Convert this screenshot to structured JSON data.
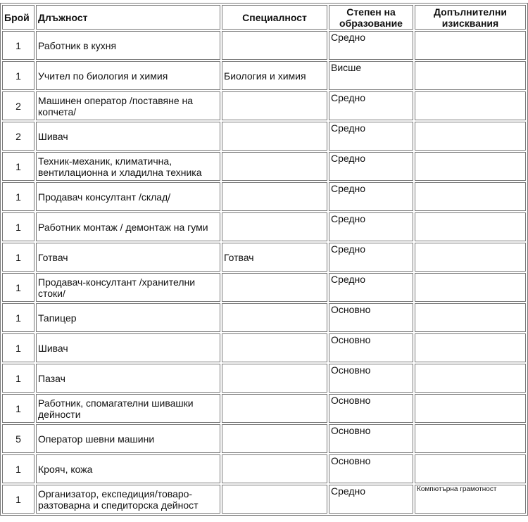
{
  "headers": {
    "count": "Брой",
    "position": "Длъжност",
    "specialty": "Специалност",
    "education": "Степен на образование",
    "requirements": "Допълнителни изисквания"
  },
  "rows": [
    {
      "count": "1",
      "position": "Работник в кухня",
      "specialty": "",
      "education": "Средно",
      "requirements": ""
    },
    {
      "count": "1",
      "position": "Учител по биология и химия",
      "specialty": "Биология и химия",
      "education": "Висше",
      "requirements": ""
    },
    {
      "count": "2",
      "position": "Машинен оператор /поставяне на копчета/",
      "specialty": "",
      "education": "Средно",
      "requirements": ""
    },
    {
      "count": "2",
      "position": "Шивач",
      "specialty": "",
      "education": "Средно",
      "requirements": ""
    },
    {
      "count": "1",
      "position": "Техник-механик, климатична, вентилационна и хладилна техника",
      "specialty": "",
      "education": "Средно",
      "requirements": ""
    },
    {
      "count": "1",
      "position": "Продавач консултант /склад/",
      "specialty": "",
      "education": "Средно",
      "requirements": ""
    },
    {
      "count": "1",
      "position": "Работник монтаж / демонтаж на гуми",
      "specialty": "",
      "education": "Средно",
      "requirements": ""
    },
    {
      "count": "1",
      "position": "Готвач",
      "specialty": "Готвач",
      "education": "Средно",
      "requirements": ""
    },
    {
      "count": "1",
      "position": "Продавач-консултант /хранителни стоки/",
      "specialty": "",
      "education": "Средно",
      "requirements": ""
    },
    {
      "count": "1",
      "position": "Тапицер",
      "specialty": "",
      "education": "Основно",
      "requirements": ""
    },
    {
      "count": "1",
      "position": "Шивач",
      "specialty": "",
      "education": "Основно",
      "requirements": ""
    },
    {
      "count": "1",
      "position": "Пазач",
      "specialty": "",
      "education": "Основно",
      "requirements": ""
    },
    {
      "count": "1",
      "position": "Работник, спомагателни шивашки дейности",
      "specialty": "",
      "education": "Основно",
      "requirements": ""
    },
    {
      "count": "5",
      "position": "Оператор шевни машини",
      "specialty": "",
      "education": "Основно",
      "requirements": ""
    },
    {
      "count": "1",
      "position": "Крояч, кожа",
      "specialty": "",
      "education": "Основно",
      "requirements": ""
    },
    {
      "count": "1",
      "position": "Организатор, експедиция/товаро-разтоварна и спедиторска дейност",
      "specialty": "",
      "education": "Средно",
      "requirements": "Компютърна грамотност"
    }
  ]
}
